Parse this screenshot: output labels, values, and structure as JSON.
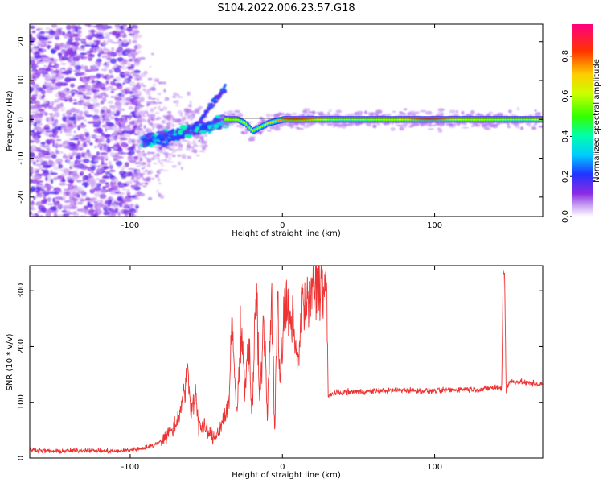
{
  "figure_title": "S104.2022.006.23.57.G18",
  "chart_data": [
    {
      "type": "heatmap",
      "title": "",
      "xlabel": "Height of straight line (km)",
      "ylabel": "Frequency (Hz)",
      "xlim": [
        -166,
        171
      ],
      "ylim": [
        -25,
        24.5
      ],
      "xticks": [
        -100,
        0,
        100
      ],
      "yticks": [
        -20,
        -10,
        0,
        10,
        20
      ],
      "colorbar": {
        "label": "Normalized spectral amplitude",
        "range": [
          0,
          0.96
        ],
        "ticks": [
          "0.0",
          "0.2",
          "0.4",
          "0.6",
          "0.8"
        ],
        "colormap": "rainbow-purple-to-red"
      },
      "features": {
        "noise_region_x": [
          -166,
          -95
        ],
        "transition_region_x": [
          -95,
          -40
        ],
        "carrier_line": {
          "x": [
            -40,
            -30,
            -25,
            -20,
            -10,
            0,
            10,
            20,
            40,
            60,
            80,
            100,
            120,
            140,
            160,
            171
          ],
          "y": [
            0,
            0,
            -1,
            -3,
            -1,
            0,
            0,
            0,
            0,
            0,
            0,
            0,
            0,
            0,
            0,
            0
          ]
        },
        "rising_streaks": [
          {
            "x": [
              -80,
              -60,
              -45,
              -37
            ],
            "y": [
              -7,
              -3,
              4,
              9
            ]
          },
          {
            "x": [
              -70,
              -55,
              -45,
              -37
            ],
            "y": [
              -5,
              -1,
              5,
              8
            ]
          }
        ]
      }
    },
    {
      "type": "line",
      "title": "",
      "xlabel": "Height of straight line (km)",
      "ylabel": "SNR (10 * v/v)",
      "xlim": [
        -166,
        171
      ],
      "ylim": [
        0,
        345
      ],
      "xticks": [
        -100,
        0,
        100
      ],
      "yticks": [
        0,
        100,
        200,
        300
      ],
      "color": "#ee3333",
      "series": [
        {
          "x": [
            -166,
            -150,
            -130,
            -110,
            -95,
            -85,
            -78,
            -70,
            -65,
            -62,
            -60,
            -57,
            -55,
            -50,
            -45,
            -40,
            -35,
            -33,
            -30,
            -27,
            -25,
            -22,
            -20,
            -17,
            -15,
            -12,
            -10,
            -7,
            -5,
            -3,
            -2,
            0,
            2,
            5,
            8,
            10,
            13,
            15,
            18,
            20,
            23,
            25,
            27,
            29,
            30,
            32,
            40,
            60,
            80,
            100,
            120,
            130,
            138,
            140,
            144,
            145,
            146,
            147,
            148,
            150,
            160,
            171
          ],
          "y": [
            15,
            12,
            14,
            12,
            16,
            22,
            35,
            60,
            110,
            150,
            80,
            120,
            60,
            50,
            35,
            60,
            100,
            245,
            70,
            250,
            130,
            200,
            80,
            300,
            110,
            250,
            70,
            290,
            40,
            320,
            150,
            200,
            280,
            240,
            230,
            160,
            290,
            260,
            280,
            300,
            310,
            320,
            300,
            315,
            110,
            115,
            118,
            120,
            122,
            120,
            124,
            123,
            126,
            127,
            125,
            335,
            330,
            115,
            130,
            138,
            135,
            132
          ]
        }
      ]
    }
  ]
}
